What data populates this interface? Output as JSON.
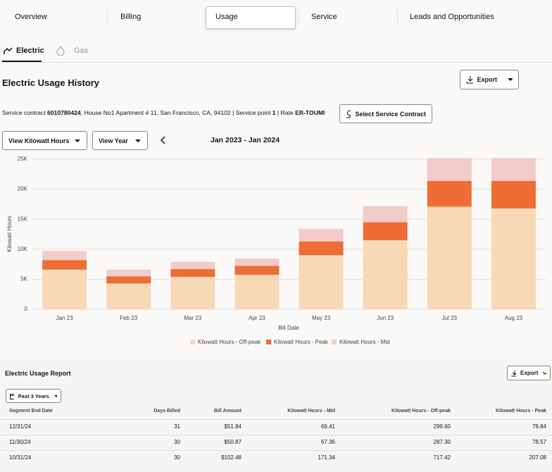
{
  "tabs": [
    "Overview",
    "Billing",
    "Usage",
    "Service",
    "Leads and Opportunities"
  ],
  "subtabs": [
    "Electric",
    "Gas"
  ],
  "heading": "Electric Usage History",
  "export": "Export",
  "contract": [
    "Service contract ",
    "6010780424",
    ", House No1 Apartment # 11, San Francisco, CA, 94102 | Service point ",
    "1",
    " | Rate ",
    "ER-TOUMI"
  ],
  "select_contract": "Select Service Contract",
  "unit_select": "View Kilowatt Hours",
  "period_select": "View Year",
  "date_range": "Jan 2023 - Jan 2024",
  "chart_data": {
    "type": "bar",
    "stacked": true,
    "ylabel": "Kilowatt Hours",
    "xlabel": "Bill Date",
    "categories": [
      "Jan 23",
      "Feb 23",
      "Mar 23",
      "Apr 23",
      "May 23",
      "Jun 23",
      "Jul 23",
      "Aug 23"
    ],
    "series": [
      {
        "name": "Kilowatt Hours - Off-peak",
        "color": "#f7d9b5",
        "values": [
          6600,
          4300,
          5400,
          5750,
          9000,
          11500,
          17100,
          16800
        ]
      },
      {
        "name": "Kilowatt Hours - Peak",
        "color": "#ee6d35",
        "values": [
          1600,
          1200,
          1300,
          1500,
          2300,
          3000,
          4300,
          4600
        ]
      },
      {
        "name": "Kilowatt Hours - Mid",
        "color": "#f3cbc8",
        "values": [
          1500,
          1100,
          1200,
          1200,
          2100,
          2700,
          3800,
          3800
        ]
      }
    ],
    "ylim": [
      0,
      25000
    ],
    "yticks": [
      0,
      {
        "value": 5000,
        "label": "5K"
      },
      {
        "value": 10000,
        "label": "10K"
      },
      {
        "value": 15000,
        "label": "15K"
      },
      {
        "value": 20000,
        "label": "20K"
      },
      {
        "value": 25000,
        "label": "25K"
      }
    ],
    "grid": true,
    "legend": "bottom"
  },
  "report": {
    "title": "Electric Usage Report",
    "export": "Export",
    "filter": "Past 3 Years",
    "columns": [
      "Segment End Date",
      "Days Billed",
      "Bill Amount",
      "Kilowatt Hours - Mid",
      "Kilowatt Hours - Off-peak",
      "Kilowatt Hours - Peak"
    ],
    "rows": [
      [
        "12/31/24",
        "31",
        "$51.84",
        "69.41",
        "299.60",
        "79.84"
      ],
      [
        "11/30/24",
        "30",
        "$50.87",
        "67.36",
        "287.30",
        "78.57"
      ],
      [
        "10/31/24",
        "30",
        "$102.48",
        "171.34",
        "717.42",
        "207.08"
      ]
    ]
  }
}
